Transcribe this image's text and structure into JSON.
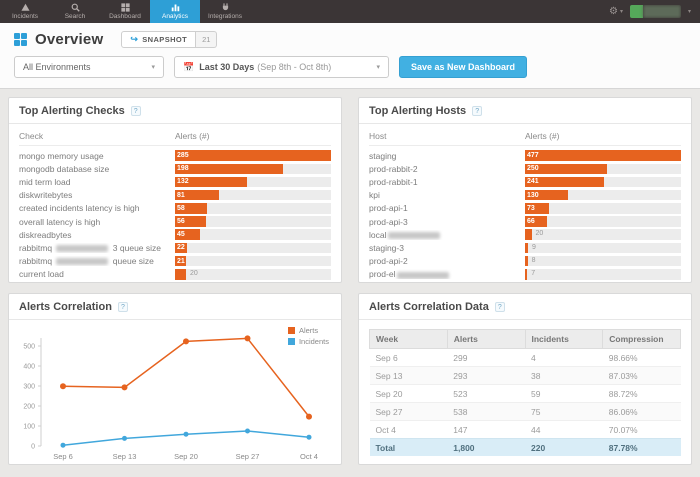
{
  "ui": {
    "help": "?"
  },
  "colors": {
    "nav_bg": "#3b3536",
    "accent_blue": "#2e9fd6",
    "bar_orange": "#e6631f",
    "incident_blue": "#41a7dc",
    "total_row_bg": "#d9edf7"
  },
  "nav": {
    "items": [
      {
        "label": "Incidents"
      },
      {
        "label": "Search"
      },
      {
        "label": "Dashboard"
      },
      {
        "label": "Analytics"
      },
      {
        "label": "Integrations"
      }
    ],
    "active": "Analytics"
  },
  "header": {
    "title": "Overview",
    "snapshot": {
      "label": "SNAPSHOT",
      "count": "21"
    }
  },
  "filters": {
    "environment": {
      "value": "All Environments"
    },
    "date": {
      "label": "Last 30 Days",
      "range": "(Sep 8th - Oct 8th)"
    },
    "save_label": "Save as New Dashboard"
  },
  "panels": {
    "checks": {
      "title": "Top Alerting Checks",
      "col1": "Check",
      "col2": "Alerts (#)",
      "rows": [
        {
          "prefix": "mongo memory usage",
          "redacted": false,
          "suffix": "",
          "value": 285
        },
        {
          "prefix": "mongodb database size",
          "redacted": false,
          "suffix": "",
          "value": 198
        },
        {
          "prefix": "mid term load",
          "redacted": false,
          "suffix": "",
          "value": 132
        },
        {
          "prefix": "diskwritebytes",
          "redacted": false,
          "suffix": "",
          "value": 81
        },
        {
          "prefix": "created incidents latency is high",
          "redacted": false,
          "suffix": "",
          "value": 58
        },
        {
          "prefix": "overall latency is high",
          "redacted": false,
          "suffix": "",
          "value": 56
        },
        {
          "prefix": "diskreadbytes",
          "redacted": false,
          "suffix": "",
          "value": 45
        },
        {
          "prefix": "rabbitmq ",
          "redacted": true,
          "suffix": " 3 queue size",
          "value": 22
        },
        {
          "prefix": "rabbitmq ",
          "redacted": true,
          "suffix": " queue size",
          "value": 21
        },
        {
          "prefix": "current load",
          "redacted": false,
          "suffix": "",
          "value": 20
        }
      ]
    },
    "hosts": {
      "title": "Top Alerting Hosts",
      "col1": "Host",
      "col2": "Alerts (#)",
      "rows": [
        {
          "prefix": "staging",
          "redacted": false,
          "suffix": "",
          "value": 477
        },
        {
          "prefix": "prod-rabbit-2",
          "redacted": false,
          "suffix": "",
          "value": 250
        },
        {
          "prefix": "prod-rabbit-1",
          "redacted": false,
          "suffix": "",
          "value": 241
        },
        {
          "prefix": "kpi",
          "redacted": false,
          "suffix": "",
          "value": 130
        },
        {
          "prefix": "prod-api-1",
          "redacted": false,
          "suffix": "",
          "value": 73
        },
        {
          "prefix": "prod-api-3",
          "redacted": false,
          "suffix": "",
          "value": 66
        },
        {
          "prefix": "local",
          "redacted": true,
          "suffix": "",
          "value": 20
        },
        {
          "prefix": "staging-3",
          "redacted": false,
          "suffix": "",
          "value": 9
        },
        {
          "prefix": "prod-api-2",
          "redacted": false,
          "suffix": "",
          "value": 8
        },
        {
          "prefix": "prod-el",
          "redacted": true,
          "suffix": "",
          "value": 7
        }
      ]
    },
    "correlation": {
      "title": "Alerts Correlation"
    },
    "correlation_data": {
      "title": "Alerts Correlation Data",
      "columns": [
        "Week",
        "Alerts",
        "Incidents",
        "Compression"
      ],
      "rows": [
        [
          "Sep 6",
          "299",
          "4",
          "98.66%"
        ],
        [
          "Sep 13",
          "293",
          "38",
          "87.03%"
        ],
        [
          "Sep 20",
          "523",
          "59",
          "88.72%"
        ],
        [
          "Sep 27",
          "538",
          "75",
          "86.06%"
        ],
        [
          "Oct 4",
          "147",
          "44",
          "70.07%"
        ]
      ],
      "total": [
        "Total",
        "1,800",
        "220",
        "87.78%"
      ]
    }
  },
  "chart_data": {
    "type": "line",
    "title": "Alerts Correlation",
    "x": [
      "Sep 6",
      "Sep 13",
      "Sep 20",
      "Sep 27",
      "Oct 4"
    ],
    "series": [
      {
        "name": "Alerts",
        "color": "#e6631f",
        "values": [
          299,
          293,
          523,
          538,
          147
        ]
      },
      {
        "name": "Incidents",
        "color": "#41a7dc",
        "values": [
          4,
          38,
          59,
          75,
          44
        ]
      }
    ],
    "ylim": [
      0,
      550
    ],
    "yticks": [
      0,
      100,
      200,
      300,
      400,
      500
    ],
    "legend_position": "top-right",
    "grid": false
  }
}
